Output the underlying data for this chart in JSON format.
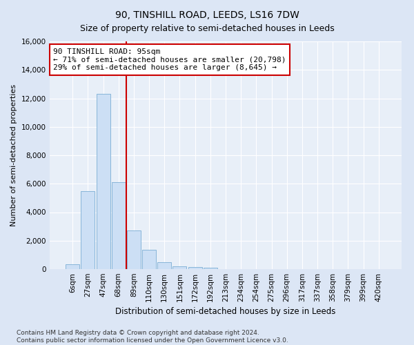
{
  "title": "90, TINSHILL ROAD, LEEDS, LS16 7DW",
  "subtitle": "Size of property relative to semi-detached houses in Leeds",
  "xlabel": "Distribution of semi-detached houses by size in Leeds",
  "ylabel": "Number of semi-detached properties",
  "bar_labels": [
    "6sqm",
    "27sqm",
    "47sqm",
    "68sqm",
    "89sqm",
    "110sqm",
    "130sqm",
    "151sqm",
    "172sqm",
    "192sqm",
    "213sqm",
    "234sqm",
    "254sqm",
    "275sqm",
    "296sqm",
    "317sqm",
    "337sqm",
    "358sqm",
    "379sqm",
    "399sqm",
    "420sqm"
  ],
  "bar_values": [
    320,
    5500,
    12300,
    6100,
    2700,
    1350,
    500,
    200,
    150,
    100,
    0,
    0,
    0,
    0,
    0,
    0,
    0,
    0,
    0,
    0,
    0
  ],
  "bar_color": "#ccdff5",
  "bar_edge_color": "#7aadd4",
  "vline_position": 3.5,
  "vline_color": "#cc0000",
  "annotation_text": "90 TINSHILL ROAD: 95sqm\n← 71% of semi-detached houses are smaller (20,798)\n29% of semi-detached houses are larger (8,645) →",
  "annotation_box_facecolor": "white",
  "annotation_box_edgecolor": "#cc0000",
  "ylim": [
    0,
    16000
  ],
  "yticks": [
    0,
    2000,
    4000,
    6000,
    8000,
    10000,
    12000,
    14000,
    16000
  ],
  "fig_bg_color": "#dce6f5",
  "plot_bg_color": "#e8eff8",
  "grid_color": "white",
  "title_fontsize": 10,
  "subtitle_fontsize": 9,
  "tick_fontsize": 7.5,
  "ylabel_fontsize": 8,
  "xlabel_fontsize": 8.5,
  "annotation_fontsize": 8,
  "footer_fontsize": 6.5,
  "footer": "Contains HM Land Registry data © Crown copyright and database right 2024.\nContains public sector information licensed under the Open Government Licence v3.0."
}
